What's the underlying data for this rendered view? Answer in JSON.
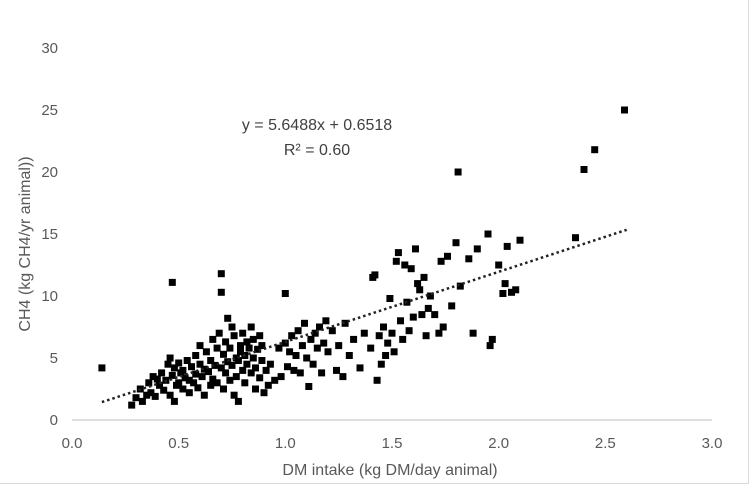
{
  "chart_data": {
    "type": "scatter",
    "title": "",
    "xlabel": "DM intake (kg DM/day animal)",
    "ylabel": "CH4  (kg CH4/yr animal))",
    "xlim": [
      0,
      3
    ],
    "ylim": [
      0,
      30
    ],
    "xticks": [
      "0.0",
      "0.5",
      "1.0",
      "1.5",
      "2.0",
      "2.5",
      "3.0"
    ],
    "yticks": [
      "0",
      "5",
      "10",
      "15",
      "20",
      "25",
      "30"
    ],
    "grid": false,
    "legend": "none",
    "marker_color": "#000000",
    "trendline": {
      "type": "linear",
      "slope": 5.6488,
      "intercept": 0.6518,
      "x_range": [
        0.14,
        2.6
      ],
      "style": "dotted",
      "equation_label": "y = 5.6488x + 0.6518",
      "r2_label": "R² = 0.60"
    },
    "points": [
      [
        0.14,
        4.2
      ],
      [
        0.28,
        1.2
      ],
      [
        0.3,
        1.8
      ],
      [
        0.32,
        2.5
      ],
      [
        0.33,
        1.5
      ],
      [
        0.35,
        2.0
      ],
      [
        0.36,
        3.0
      ],
      [
        0.37,
        2.2
      ],
      [
        0.38,
        3.5
      ],
      [
        0.39,
        1.9
      ],
      [
        0.4,
        3.3
      ],
      [
        0.41,
        2.8
      ],
      [
        0.42,
        3.8
      ],
      [
        0.43,
        2.4
      ],
      [
        0.44,
        3.2
      ],
      [
        0.45,
        4.5
      ],
      [
        0.46,
        2.0
      ],
      [
        0.46,
        5.0
      ],
      [
        0.47,
        3.6
      ],
      [
        0.47,
        11.1
      ],
      [
        0.48,
        1.5
      ],
      [
        0.48,
        4.2
      ],
      [
        0.49,
        2.8
      ],
      [
        0.5,
        3.0
      ],
      [
        0.5,
        4.6
      ],
      [
        0.51,
        3.8
      ],
      [
        0.52,
        2.5
      ],
      [
        0.52,
        4.0
      ],
      [
        0.53,
        3.4
      ],
      [
        0.54,
        4.8
      ],
      [
        0.55,
        3.2
      ],
      [
        0.55,
        2.2
      ],
      [
        0.56,
        4.3
      ],
      [
        0.57,
        3.0
      ],
      [
        0.58,
        5.2
      ],
      [
        0.58,
        3.7
      ],
      [
        0.59,
        2.6
      ],
      [
        0.6,
        4.5
      ],
      [
        0.6,
        6.0
      ],
      [
        0.61,
        3.5
      ],
      [
        0.62,
        4.1
      ],
      [
        0.62,
        2.0
      ],
      [
        0.63,
        5.5
      ],
      [
        0.64,
        3.9
      ],
      [
        0.65,
        4.8
      ],
      [
        0.65,
        2.8
      ],
      [
        0.66,
        6.5
      ],
      [
        0.66,
        3.3
      ],
      [
        0.67,
        4.4
      ],
      [
        0.68,
        5.8
      ],
      [
        0.68,
        3.0
      ],
      [
        0.69,
        7.0
      ],
      [
        0.7,
        4.2
      ],
      [
        0.7,
        10.3
      ],
      [
        0.7,
        11.8
      ],
      [
        0.71,
        5.3
      ],
      [
        0.71,
        2.5
      ],
      [
        0.72,
        3.8
      ],
      [
        0.72,
        6.3
      ],
      [
        0.73,
        4.7
      ],
      [
        0.73,
        8.2
      ],
      [
        0.74,
        5.8
      ],
      [
        0.74,
        3.2
      ],
      [
        0.75,
        4.4
      ],
      [
        0.75,
        7.5
      ],
      [
        0.76,
        6.8
      ],
      [
        0.76,
        2.0
      ],
      [
        0.77,
        5.0
      ],
      [
        0.77,
        3.5
      ],
      [
        0.78,
        4.8
      ],
      [
        0.78,
        1.5
      ],
      [
        0.79,
        6.0
      ],
      [
        0.79,
        5.5
      ],
      [
        0.8,
        4.0
      ],
      [
        0.8,
        7.0
      ],
      [
        0.81,
        5.2
      ],
      [
        0.81,
        3.0
      ],
      [
        0.82,
        6.3
      ],
      [
        0.82,
        4.5
      ],
      [
        0.83,
        5.8
      ],
      [
        0.84,
        7.5
      ],
      [
        0.84,
        3.8
      ],
      [
        0.85,
        5.0
      ],
      [
        0.85,
        6.5
      ],
      [
        0.86,
        4.2
      ],
      [
        0.86,
        2.5
      ],
      [
        0.87,
        5.7
      ],
      [
        0.88,
        6.8
      ],
      [
        0.88,
        3.4
      ],
      [
        0.89,
        4.8
      ],
      [
        0.89,
        6.0
      ],
      [
        0.9,
        2.2
      ],
      [
        0.91,
        4.0
      ],
      [
        0.92,
        2.8
      ],
      [
        0.93,
        4.5
      ],
      [
        0.95,
        3.2
      ],
      [
        0.97,
        5.8
      ],
      [
        0.98,
        3.5
      ],
      [
        1.0,
        10.2
      ],
      [
        1.0,
        6.2
      ],
      [
        1.01,
        4.3
      ],
      [
        1.02,
        5.5
      ],
      [
        1.03,
        6.8
      ],
      [
        1.04,
        4.0
      ],
      [
        1.05,
        5.2
      ],
      [
        1.06,
        7.2
      ],
      [
        1.07,
        3.8
      ],
      [
        1.08,
        6.0
      ],
      [
        1.09,
        7.8
      ],
      [
        1.1,
        5.0
      ],
      [
        1.11,
        2.7
      ],
      [
        1.12,
        6.5
      ],
      [
        1.13,
        4.5
      ],
      [
        1.14,
        7.0
      ],
      [
        1.15,
        5.8
      ],
      [
        1.16,
        7.5
      ],
      [
        1.17,
        3.8
      ],
      [
        1.18,
        6.2
      ],
      [
        1.19,
        8.0
      ],
      [
        1.2,
        5.5
      ],
      [
        1.22,
        7.2
      ],
      [
        1.24,
        4.0
      ],
      [
        1.25,
        6.0
      ],
      [
        1.27,
        3.5
      ],
      [
        1.28,
        7.8
      ],
      [
        1.3,
        5.2
      ],
      [
        1.32,
        6.5
      ],
      [
        1.35,
        4.2
      ],
      [
        1.37,
        7.0
      ],
      [
        1.4,
        5.8
      ],
      [
        1.41,
        11.5
      ],
      [
        1.42,
        11.7
      ],
      [
        1.43,
        3.2
      ],
      [
        1.44,
        6.8
      ],
      [
        1.45,
        4.5
      ],
      [
        1.46,
        7.5
      ],
      [
        1.47,
        5.2
      ],
      [
        1.48,
        6.2
      ],
      [
        1.49,
        9.8
      ],
      [
        1.5,
        7.0
      ],
      [
        1.51,
        5.5
      ],
      [
        1.52,
        12.8
      ],
      [
        1.53,
        13.5
      ],
      [
        1.54,
        8.0
      ],
      [
        1.55,
        6.5
      ],
      [
        1.56,
        12.5
      ],
      [
        1.57,
        9.5
      ],
      [
        1.58,
        7.2
      ],
      [
        1.59,
        12.2
      ],
      [
        1.6,
        8.3
      ],
      [
        1.61,
        13.8
      ],
      [
        1.62,
        11.0
      ],
      [
        1.63,
        10.5
      ],
      [
        1.64,
        8.5
      ],
      [
        1.65,
        11.5
      ],
      [
        1.66,
        6.8
      ],
      [
        1.67,
        9.0
      ],
      [
        1.68,
        10.0
      ],
      [
        1.7,
        8.5
      ],
      [
        1.72,
        7.0
      ],
      [
        1.73,
        12.8
      ],
      [
        1.74,
        7.5
      ],
      [
        1.76,
        13.2
      ],
      [
        1.78,
        9.2
      ],
      [
        1.8,
        14.3
      ],
      [
        1.81,
        20.0
      ],
      [
        1.82,
        10.8
      ],
      [
        1.86,
        13.0
      ],
      [
        1.88,
        7.0
      ],
      [
        1.9,
        13.8
      ],
      [
        1.95,
        15.0
      ],
      [
        1.96,
        6.0
      ],
      [
        1.97,
        6.5
      ],
      [
        2.0,
        12.5
      ],
      [
        2.02,
        10.2
      ],
      [
        2.03,
        11.0
      ],
      [
        2.04,
        14.0
      ],
      [
        2.06,
        10.3
      ],
      [
        2.08,
        10.5
      ],
      [
        2.1,
        14.5
      ],
      [
        2.36,
        14.7
      ],
      [
        2.4,
        20.2
      ],
      [
        2.45,
        21.8
      ],
      [
        2.59,
        25.0
      ]
    ]
  }
}
